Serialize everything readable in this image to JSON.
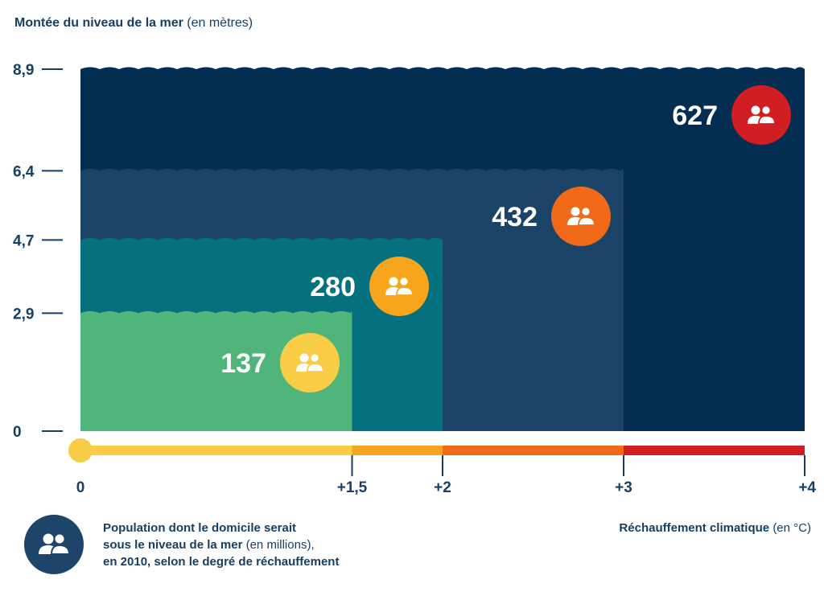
{
  "chart_data": {
    "type": "area",
    "ylabel_bold": "Montée du niveau de la mer",
    "ylabel_unit": "(en mètres)",
    "xlabel_bold": "Réchauffement climatique",
    "xlabel_unit": "(en °C)",
    "y_ticks": [
      "0",
      "2,9",
      "4,7",
      "6,4",
      "8,9"
    ],
    "x_ticks": [
      "0",
      "+1,5",
      "+2",
      "+3",
      "+4"
    ],
    "xlim": [
      0,
      4
    ],
    "ylim": [
      0,
      8.9
    ],
    "steps": [
      {
        "x_end": 1.5,
        "sea_level_m": 2.9,
        "population_millions": 137,
        "color": "#4fb57a",
        "badge_color": "#f9cd45"
      },
      {
        "x_end": 2,
        "sea_level_m": 4.7,
        "population_millions": 280,
        "color": "#05717e",
        "badge_color": "#f7a51c"
      },
      {
        "x_end": 3,
        "sea_level_m": 6.4,
        "population_millions": 432,
        "color": "#1b4368",
        "badge_color": "#f06a1a"
      },
      {
        "x_end": 4,
        "sea_level_m": 8.9,
        "population_millions": 627,
        "color": "#042d52",
        "badge_color": "#d01e22"
      }
    ],
    "warming_bar_colors": [
      "#f9cd45",
      "#f7a51c",
      "#f06a1a",
      "#d01e22"
    ]
  },
  "legend": {
    "icon": "people-icon",
    "line1": "Population dont le domicile serait",
    "line2_bold": "sous le niveau de la mer",
    "line2_unit": "(en millions),",
    "line3": "en 2010, selon le degré de réchauffement"
  }
}
